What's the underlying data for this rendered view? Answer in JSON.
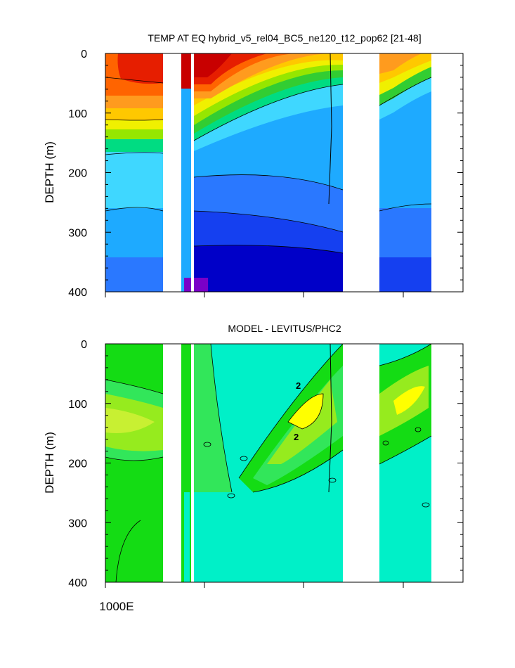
{
  "chart_data": [
    {
      "type": "heatmap",
      "title": "TEMP AT EQ hybrid_v5_rel04_BC5_ne120_t12_pop62 [21-48]",
      "ylabel": "DEPTH (m)",
      "xlabel": "",
      "ylim": [
        400,
        0
      ],
      "yticks": [
        "0",
        "100",
        "200",
        "300",
        "400"
      ],
      "ytick_values": [
        0,
        100,
        200,
        300,
        400
      ],
      "contour_colors": [
        "#7a00c8",
        "#0000c8",
        "#1540f0",
        "#2a78ff",
        "#1eaaff",
        "#3fd7ff",
        "#00e6e6",
        "#00dc82",
        "#32cd32",
        "#96e600",
        "#f0f000",
        "#ffc800",
        "#ff9b1e",
        "#ff6400",
        "#e61e00",
        "#c80000"
      ],
      "ocean_columns_fraction": [
        [
          0.0,
          0.22
        ],
        [
          0.3,
          0.95
        ],
        [
          1.1,
          1.29
        ]
      ]
    },
    {
      "type": "heatmap",
      "title": "MODEL - LEVITUS/PHC2",
      "ylabel": "DEPTH (m)",
      "xlabel": "",
      "ylim": [
        400,
        0
      ],
      "yticks": [
        "0",
        "100",
        "200",
        "300",
        "400"
      ],
      "ytick_values": [
        0,
        100,
        200,
        300,
        400
      ],
      "xtick_label": "1000E",
      "contour_labels": [
        "2",
        "2"
      ],
      "contour_colors": [
        "#00f0c8",
        "#32e65a",
        "#14dc14",
        "#96eb1e",
        "#ffff00"
      ]
    }
  ]
}
